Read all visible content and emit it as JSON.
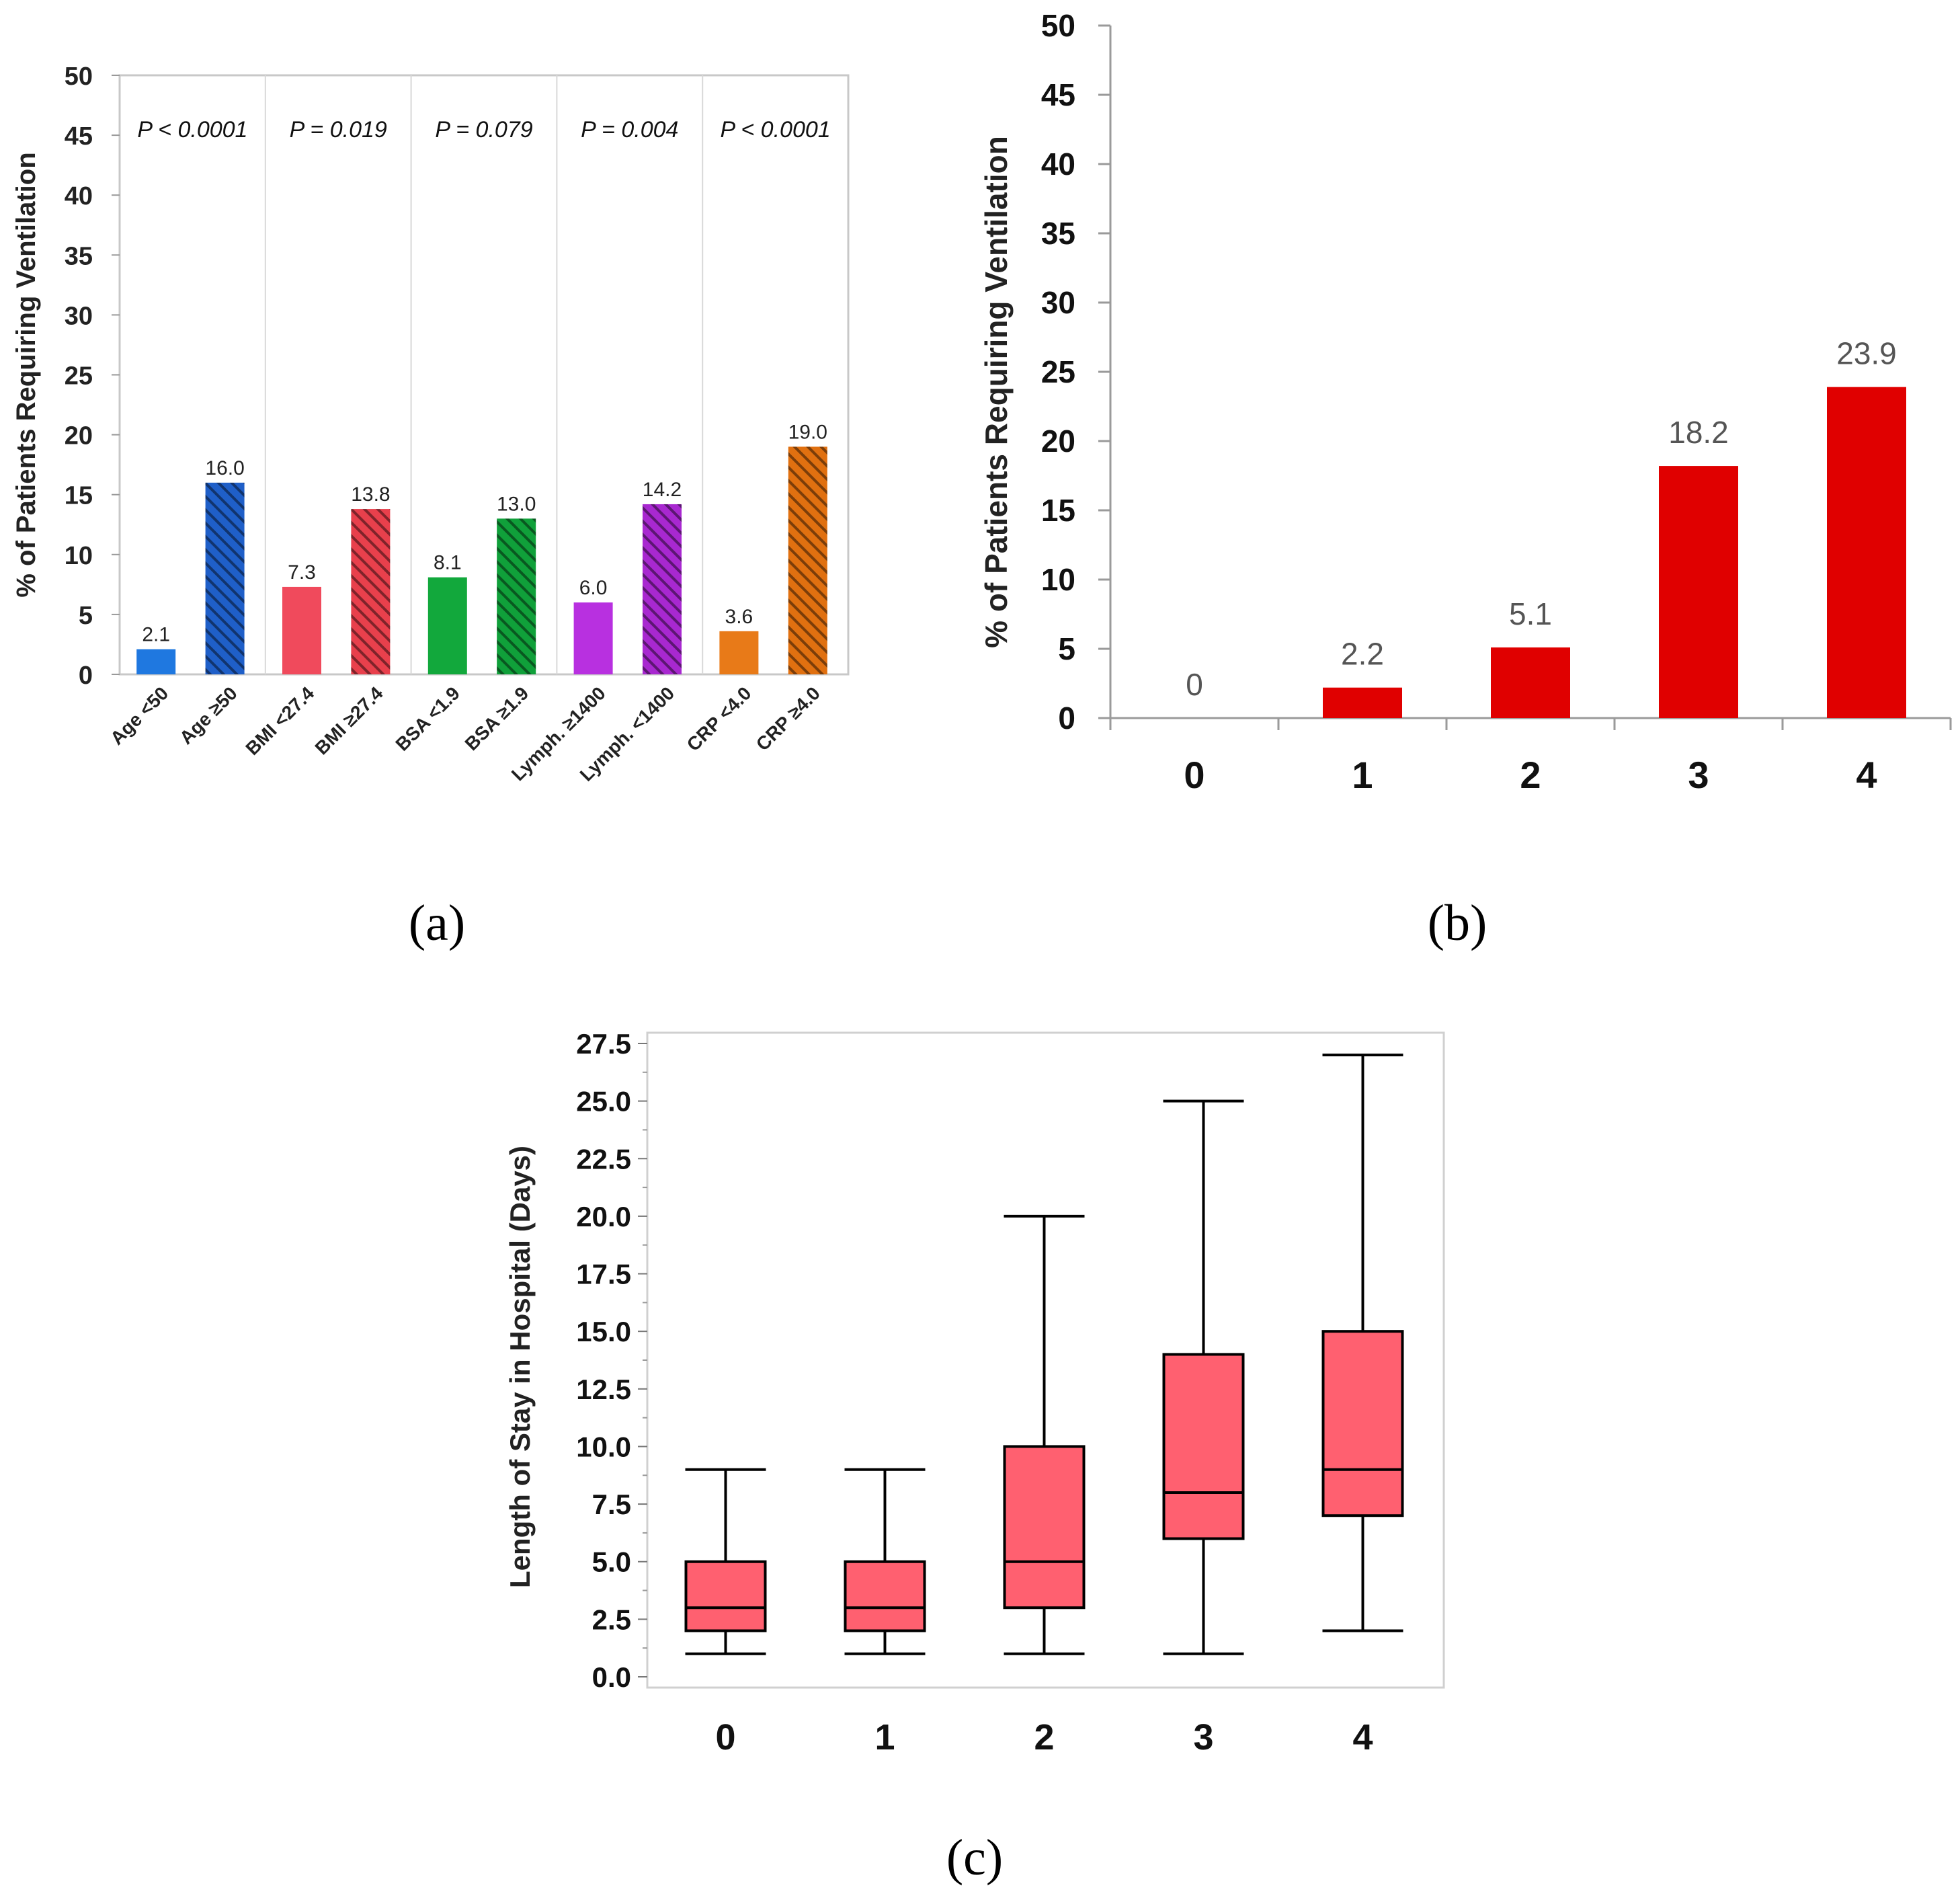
{
  "chart_data": [
    {
      "panel": "a",
      "type": "bar",
      "ylabel": "% of Patients Requiring Ventilation",
      "ylim": [
        0,
        50
      ],
      "yticks": [
        "0",
        "5",
        "10",
        "15",
        "20",
        "25",
        "30",
        "35",
        "40",
        "45",
        "50"
      ],
      "categories": [
        "Age <50",
        "Age ≥50",
        "BMI <27.4",
        "BMI ≥27.4",
        "BSA <1.9",
        "BSA ≥1.9",
        "Lymph. ≥1400",
        "Lymph. <1400",
        "CRP <4.0",
        "CRP ≥4.0"
      ],
      "values": [
        2.1,
        16.0,
        7.3,
        13.8,
        8.1,
        13.0,
        6.0,
        14.2,
        3.6,
        19.0
      ],
      "value_labels": [
        "2.1",
        "16.0",
        "7.3",
        "13.8",
        "8.1",
        "13.0",
        "6.0",
        "14.2",
        "3.6",
        "19.0"
      ],
      "hatched": [
        false,
        true,
        false,
        true,
        false,
        true,
        false,
        true,
        false,
        true
      ],
      "colors": [
        "#1f78e0",
        "#1f5fc8",
        "#f04a5c",
        "#e8404c",
        "#12a83c",
        "#10a03a",
        "#b830e0",
        "#a828d0",
        "#e87a18",
        "#e07010"
      ],
      "p_values": [
        "P < 0.0001",
        "P = 0.019",
        "P = 0.079",
        "P = 0.004",
        "P < 0.0001"
      ]
    },
    {
      "panel": "b",
      "type": "bar",
      "ylabel": "% of Patients Requiring Ventilation",
      "ylim": [
        0,
        50
      ],
      "yticks": [
        "0",
        "5",
        "10",
        "15",
        "20",
        "25",
        "30",
        "35",
        "40",
        "45",
        "50"
      ],
      "categories": [
        "0",
        "1",
        "2",
        "3",
        "4"
      ],
      "values": [
        0,
        2.2,
        5.1,
        18.2,
        23.9
      ],
      "value_labels": [
        "0",
        "2.2",
        "5.1",
        "18.2",
        "23.9"
      ],
      "color": "#e00000"
    },
    {
      "panel": "c",
      "type": "box",
      "ylabel": "Length of Stay in Hospital (Days)",
      "ylim": [
        0,
        27.5
      ],
      "yticks": [
        "0.0",
        "2.5",
        "5.0",
        "7.5",
        "10.0",
        "12.5",
        "15.0",
        "17.5",
        "20.0",
        "22.5",
        "25.0",
        "27.5"
      ],
      "categories": [
        "0",
        "1",
        "2",
        "3",
        "4"
      ],
      "boxes": [
        {
          "min": 1,
          "q1": 2,
          "median": 3,
          "q3": 5,
          "max": 9
        },
        {
          "min": 1,
          "q1": 2,
          "median": 3,
          "q3": 5,
          "max": 9
        },
        {
          "min": 1,
          "q1": 3,
          "median": 5,
          "q3": 10,
          "max": 20
        },
        {
          "min": 1,
          "q1": 6,
          "median": 8,
          "q3": 14,
          "max": 25
        },
        {
          "min": 2,
          "q1": 7,
          "median": 9,
          "q3": 15,
          "max": 27
        }
      ],
      "color": "#ff6070"
    }
  ],
  "captions": {
    "a": "(a)",
    "b": "(b)",
    "c": "(c)"
  }
}
